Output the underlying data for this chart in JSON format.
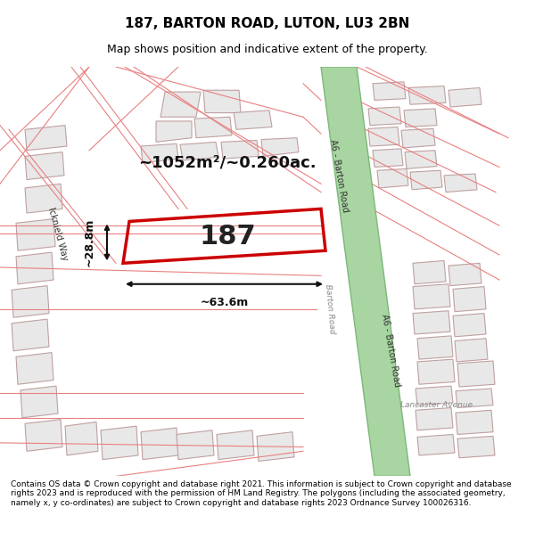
{
  "title": "187, BARTON ROAD, LUTON, LU3 2BN",
  "subtitle": "Map shows position and indicative extent of the property.",
  "footer": "Contains OS data © Crown copyright and database right 2021. This information is subject to Crown copyright and database rights 2023 and is reproduced with the permission of HM Land Registry. The polygons (including the associated geometry, namely x, y co-ordinates) are subject to Crown copyright and database rights 2023 Ordnance Survey 100026316.",
  "bg_color": "#f5f5f5",
  "map_bg": "#ffffff",
  "area_label": "~1052m²/~0.260ac.",
  "width_label": "~63.6m",
  "height_label": "~28.8m",
  "number_label": "187",
  "road_label_1": "A6 - Barton Road",
  "road_label_2": "A6 - Barton Road",
  "road_label_barton": "Barton Road",
  "road_label_icknield": "Icknield Way",
  "road_label_lancaster": "Lancaster Avenue",
  "green_road_color": "#a8d5a2",
  "green_road_edge": "#7db87a",
  "red_plot_color": "#cc0000",
  "building_fill": "#e8e8e8",
  "building_edge": "#c0a0a0",
  "road_lines_color": "#e88080"
}
